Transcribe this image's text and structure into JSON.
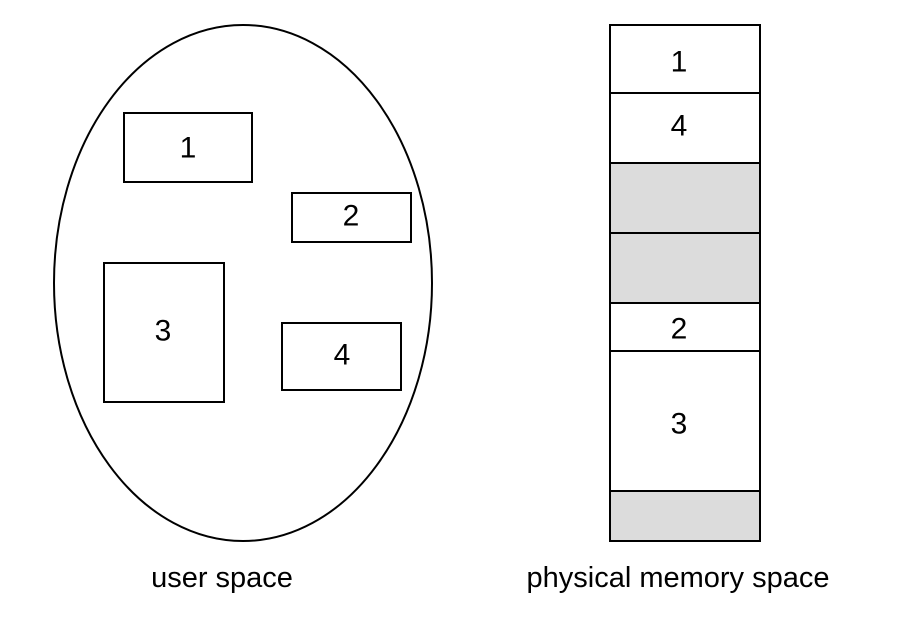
{
  "user_space": {
    "caption": "user space",
    "segments": [
      {
        "label": "1"
      },
      {
        "label": "2"
      },
      {
        "label": "3"
      },
      {
        "label": "4"
      }
    ]
  },
  "physical_memory": {
    "caption": "physical memory space",
    "blocks": [
      {
        "label": "1",
        "state": "allocated"
      },
      {
        "label": "4",
        "state": "allocated"
      },
      {
        "label": "",
        "state": "free"
      },
      {
        "label": "",
        "state": "free"
      },
      {
        "label": "2",
        "state": "allocated"
      },
      {
        "label": "3",
        "state": "allocated"
      },
      {
        "label": "",
        "state": "free"
      }
    ]
  },
  "colors": {
    "free_block": "#dcdcdc",
    "allocated_block": "#ffffff",
    "stroke": "#000000"
  }
}
